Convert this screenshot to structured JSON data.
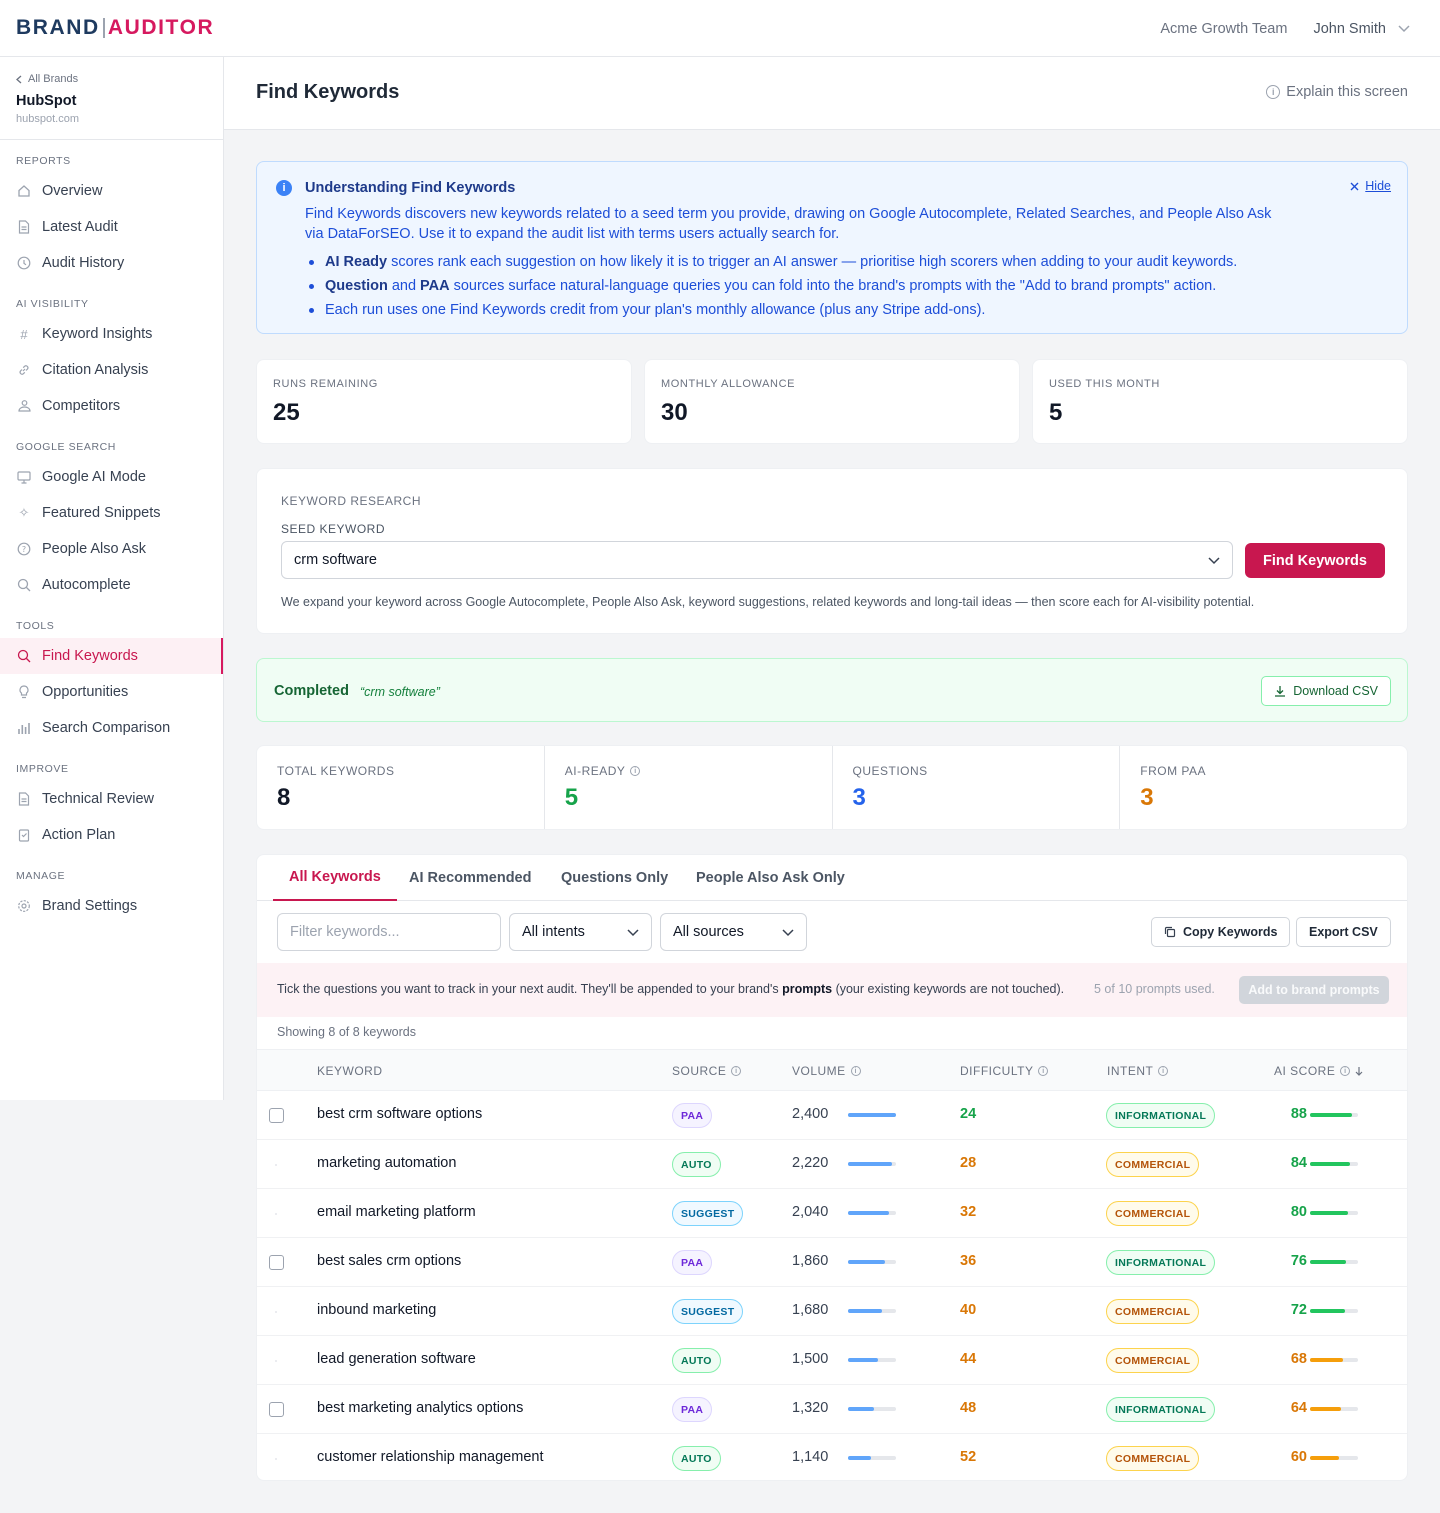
{
  "logo": {
    "part1": "BRAND",
    "part2": "AUDITOR"
  },
  "header": {
    "team": "Acme Growth Team",
    "user": "John Smith"
  },
  "sidebar": {
    "back_label": "All Brands",
    "brand_name": "HubSpot",
    "brand_domain": "hubspot.com",
    "sections": {
      "reports": "REPORTS",
      "ai_visibility": "AI VISIBILITY",
      "google_search": "GOOGLE SEARCH",
      "tools": "TOOLS",
      "improve": "IMPROVE",
      "manage": "MANAGE"
    },
    "items": {
      "overview": "Overview",
      "latest_audit": "Latest Audit",
      "audit_history": "Audit History",
      "keyword_insights": "Keyword Insights",
      "citation_analysis": "Citation Analysis",
      "competitors": "Competitors",
      "google_ai_mode": "Google AI Mode",
      "featured_snippets": "Featured Snippets",
      "people_also_ask": "People Also Ask",
      "autocomplete": "Autocomplete",
      "find_keywords": "Find Keywords",
      "opportunities": "Opportunities",
      "search_comparison": "Search Comparison",
      "technical_review": "Technical Review",
      "action_plan": "Action Plan",
      "brand_settings": "Brand Settings"
    }
  },
  "page": {
    "title": "Find Keywords",
    "explain": "Explain this screen"
  },
  "info": {
    "title": "Understanding Find Keywords",
    "description": "Find Keywords discovers new keywords related to a seed term you provide, drawing on Google Autocomplete, Related Searches, and People Also Ask via DataForSEO. Use it to expand the audit list with terms users actually search for.",
    "b1_strong": "AI Ready",
    "b1_text": "scores rank each suggestion on how likely it is to trigger an AI answer — prioritise high scorers when adding to your audit keywords.",
    "b2_strong1": "Question",
    "b2_mid": "and",
    "b2_strong2": "PAA",
    "b2_text": "sources surface natural-language queries you can fold into the brand's prompts with the \"Add to brand prompts\" action.",
    "b3_text": "Each run uses one Find Keywords credit from your plan's monthly allowance (plus any Stripe add-ons).",
    "hide": "Hide"
  },
  "credits": [
    {
      "label": "RUNS REMAINING",
      "value": "25"
    },
    {
      "label": "MONTHLY ALLOWANCE",
      "value": "30"
    },
    {
      "label": "USED THIS MONTH",
      "value": "5"
    }
  ],
  "research": {
    "section_label": "KEYWORD RESEARCH",
    "seed_label": "SEED KEYWORD",
    "seed_value": "crm software",
    "button": "Find Keywords",
    "help": "We expand your keyword across Google Autocomplete, People Also Ask, keyword suggestions, related keywords and long-tail ideas — then score each for AI-visibility potential."
  },
  "status": {
    "label": "Completed",
    "term": "“crm software”",
    "download": "Download CSV"
  },
  "summary": [
    {
      "label": "TOTAL KEYWORDS",
      "value": "8",
      "color": "#111827"
    },
    {
      "label": "AI-READY",
      "value": "5",
      "color": "#16a34a"
    },
    {
      "label": "QUESTIONS",
      "value": "3",
      "color": "#2563eb"
    },
    {
      "label": "FROM PAA",
      "value": "3",
      "color": "#d97706"
    }
  ],
  "tabs": [
    "All Keywords",
    "AI Recommended",
    "Questions Only",
    "People Also Ask Only"
  ],
  "filters": {
    "placeholder": "Filter keywords...",
    "intent": "All intents",
    "source": "All sources",
    "copy": "Copy Keywords",
    "export": "Export CSV"
  },
  "prompt_bar": {
    "text_before": "Tick the questions you want to track in your next audit. They'll be appended to your brand's",
    "text_strong": "prompts",
    "text_after": "(your existing keywords are not touched).",
    "used": "5 of 10 prompts used.",
    "button": "Add to brand prompts"
  },
  "showing": "Showing 8 of 8 keywords",
  "columns": {
    "keyword": "KEYWORD",
    "source": "SOURCE",
    "volume": "VOLUME",
    "difficulty": "DIFFICULTY",
    "intent": "INTENT",
    "ai_score": "AI SCORE"
  },
  "colors": {
    "accent": "#c8174f",
    "green": "#16a34a",
    "amber": "#d97706",
    "blue": "#2563eb",
    "volume_bar": "#60a5fa",
    "score_high": "#22c55e",
    "score_mid": "#f59e0b"
  },
  "rows": [
    {
      "keyword": "best crm software options",
      "checkbox": true,
      "source": "PAA",
      "source_type": "paa",
      "volume": "2,400",
      "volume_frac": 1.0,
      "difficulty": "24",
      "difficulty_level": "low",
      "intent": "INFORMATIONAL",
      "intent_type": "info",
      "score": "88",
      "score_frac": 0.88
    },
    {
      "keyword": "marketing automation",
      "checkbox": false,
      "source": "AUTO",
      "source_type": "auto",
      "volume": "2,220",
      "volume_frac": 0.92,
      "difficulty": "28",
      "difficulty_level": "mid",
      "intent": "COMMERCIAL",
      "intent_type": "comm",
      "score": "84",
      "score_frac": 0.84
    },
    {
      "keyword": "email marketing platform",
      "checkbox": false,
      "source": "SUGGEST",
      "source_type": "suggest",
      "volume": "2,040",
      "volume_frac": 0.85,
      "difficulty": "32",
      "difficulty_level": "mid",
      "intent": "COMMERCIAL",
      "intent_type": "comm",
      "score": "80",
      "score_frac": 0.8
    },
    {
      "keyword": "best sales crm options",
      "checkbox": true,
      "source": "PAA",
      "source_type": "paa",
      "volume": "1,860",
      "volume_frac": 0.77,
      "difficulty": "36",
      "difficulty_level": "mid",
      "intent": "INFORMATIONAL",
      "intent_type": "info",
      "score": "76",
      "score_frac": 0.76
    },
    {
      "keyword": "inbound marketing",
      "checkbox": false,
      "source": "SUGGEST",
      "source_type": "suggest",
      "volume": "1,680",
      "volume_frac": 0.7,
      "difficulty": "40",
      "difficulty_level": "mid",
      "intent": "COMMERCIAL",
      "intent_type": "comm",
      "score": "72",
      "score_frac": 0.72
    },
    {
      "keyword": "lead generation software",
      "checkbox": false,
      "source": "AUTO",
      "source_type": "auto",
      "volume": "1,500",
      "volume_frac": 0.62,
      "difficulty": "44",
      "difficulty_level": "mid",
      "intent": "COMMERCIAL",
      "intent_type": "comm",
      "score": "68",
      "score_frac": 0.68
    },
    {
      "keyword": "best marketing analytics options",
      "checkbox": true,
      "source": "PAA",
      "source_type": "paa",
      "volume": "1,320",
      "volume_frac": 0.55,
      "difficulty": "48",
      "difficulty_level": "mid",
      "intent": "INFORMATIONAL",
      "intent_type": "info",
      "score": "64",
      "score_frac": 0.64
    },
    {
      "keyword": "customer relationship management",
      "checkbox": false,
      "source": "AUTO",
      "source_type": "auto",
      "volume": "1,140",
      "volume_frac": 0.47,
      "difficulty": "52",
      "difficulty_level": "mid",
      "intent": "COMMERCIAL",
      "intent_type": "comm",
      "score": "60",
      "score_frac": 0.6
    }
  ]
}
